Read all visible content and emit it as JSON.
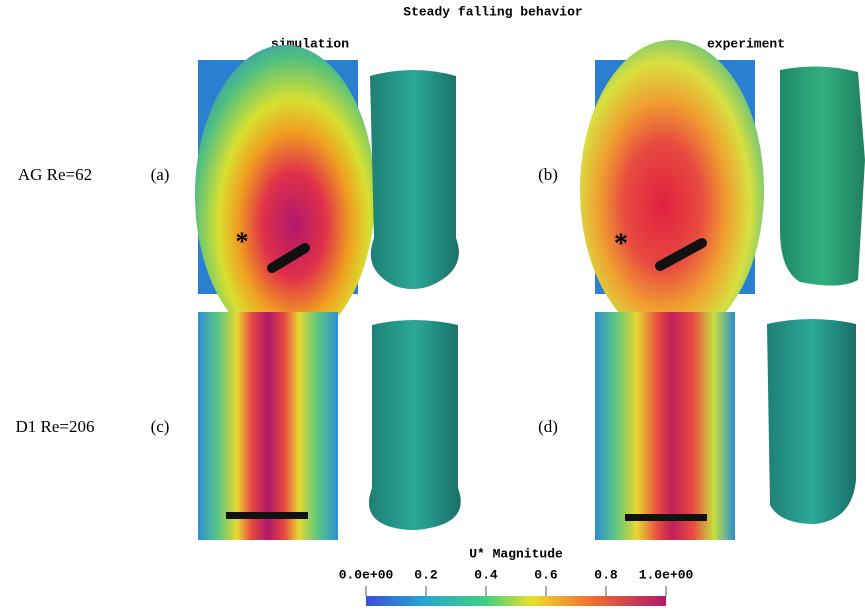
{
  "header": {
    "title": "Steady falling behavior"
  },
  "columns": [
    "simulation",
    "experiment"
  ],
  "rows": [
    {
      "label": "AG Re=62",
      "panels": [
        "(a)",
        "(b)"
      ]
    },
    {
      "label": "D1 Re=206",
      "panels": [
        "(c)",
        "(d)"
      ]
    }
  ],
  "colorbar": {
    "title": "U* Magnitude",
    "range": [
      0,
      1
    ],
    "ticks": [
      {
        "value": 0,
        "label": "0.0e+00"
      },
      0.2,
      0.4,
      0.6,
      0.8,
      {
        "value": 1,
        "label": "1.0e+00"
      }
    ]
  }
}
